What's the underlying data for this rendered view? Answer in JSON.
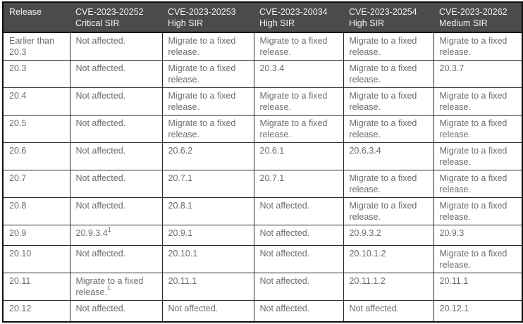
{
  "table": {
    "name": "first-fixed-release-table",
    "header": {
      "release_label": "Release",
      "cve_columns": [
        {
          "cve": "CVE-2023-20252",
          "sir": "Critical SIR"
        },
        {
          "cve": "CVE-2023-20253",
          "sir": "High SIR"
        },
        {
          "cve": "CVE-2023-20034",
          "sir": "High SIR"
        },
        {
          "cve": "CVE-2023-20254",
          "sir": "High SIR"
        },
        {
          "cve": "CVE-2023-20262",
          "sir": "Medium SIR"
        }
      ]
    },
    "rows": [
      {
        "release": "Earlier than 20.3",
        "cells": [
          "Not affected.",
          "Migrate to a fixed release.",
          "Migrate to a fixed release.",
          "Migrate to a fixed release.",
          "Migrate to a fixed release."
        ]
      },
      {
        "release": "20.3",
        "cells": [
          "Not affected.",
          "Migrate to a fixed release.",
          "20.3.4",
          "Migrate to a fixed release.",
          "20.3.7"
        ]
      },
      {
        "release": "20.4",
        "cells": [
          "Not affected.",
          "Migrate to a fixed release.",
          "Migrate to a fixed release.",
          "Migrate to a fixed release.",
          "Migrate to a fixed release."
        ]
      },
      {
        "release": "20.5",
        "cells": [
          "Not affected.",
          "Migrate to a fixed release.",
          "Migrate to a fixed release.",
          "Migrate to a fixed release.",
          "Migrate to a fixed release."
        ]
      },
      {
        "release": "20.6",
        "cells": [
          "Not affected.",
          "20.6.2",
          "20.6.1",
          "20.6.3.4",
          "Migrate to a fixed release."
        ]
      },
      {
        "release": "20.7",
        "cells": [
          "Not affected.",
          "20.7.1",
          "20.7.1",
          "Migrate to a fixed release.",
          "Migrate to a fixed release."
        ]
      },
      {
        "release": "20.8",
        "cells": [
          "Not affected.",
          "20.8.1",
          "Not affected.",
          "Migrate to a fixed release.",
          "Migrate to a fixed release."
        ]
      },
      {
        "release": "20.9",
        "cells": [
          {
            "text": "20.9.3.4",
            "footnote": "1"
          },
          "20.9.1",
          "Not affected.",
          "20.9.3.2",
          "20.9.3"
        ]
      },
      {
        "release": "20.10",
        "cells": [
          "Not affected.",
          "20.10.1",
          "Not affected.",
          "20.10.1.2",
          "Migrate to a fixed release."
        ]
      },
      {
        "release": "20.11",
        "cells": [
          {
            "text": "Migrate to a fixed release.",
            "footnote": "1"
          },
          "20.11.1",
          "Not affected.",
          "20.11.1.2",
          "20.11.1"
        ]
      },
      {
        "release": "20.12",
        "cells": [
          "Not affected.",
          "Not affected.",
          "Not affected.",
          "Not affected.",
          "20.12.1"
        ]
      }
    ]
  },
  "colors": {
    "header_bg": "#4b4b4e",
    "header_text": "#f3f3f3",
    "body_text": "#6b6c70",
    "border_inner": "#2a2a2a",
    "border_outer": "#0d0d0d"
  }
}
